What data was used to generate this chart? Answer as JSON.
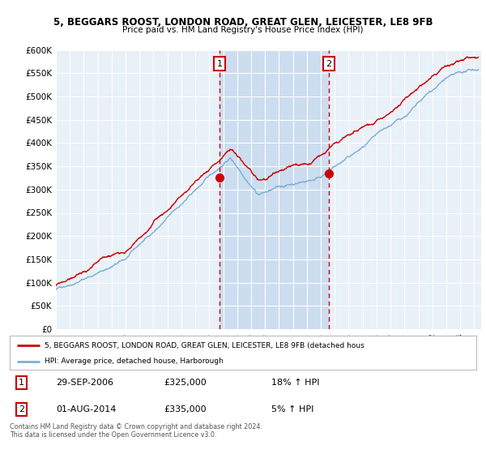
{
  "title": "5, BEGGARS ROOST, LONDON ROAD, GREAT GLEN, LEICESTER, LE8 9FB",
  "subtitle": "Price paid vs. HM Land Registry's House Price Index (HPI)",
  "ylim": [
    0,
    600000
  ],
  "xlim_start": 1995.0,
  "xlim_end": 2025.5,
  "marker1_x": 2006.75,
  "marker1_y": 325000,
  "marker2_x": 2014.58,
  "marker2_y": 335000,
  "property_color": "#cc0000",
  "hpi_color": "#7bafd4",
  "background_plot": "#e8f0f8",
  "background_highlight": "#ccddf0",
  "background_fig": "#ffffff",
  "grid_color": "#ffffff",
  "legend_property": "5, BEGGARS ROOST, LONDON ROAD, GREAT GLEN, LEICESTER, LE8 9FB (detached hous",
  "legend_hpi": "HPI: Average price, detached house, Harborough",
  "annotation1_date": "29-SEP-2006",
  "annotation1_price": "£325,000",
  "annotation1_hpi": "18% ↑ HPI",
  "annotation2_date": "01-AUG-2014",
  "annotation2_price": "£335,000",
  "annotation2_hpi": "5% ↑ HPI",
  "footer": "Contains HM Land Registry data © Crown copyright and database right 2024.\nThis data is licensed under the Open Government Licence v3.0."
}
